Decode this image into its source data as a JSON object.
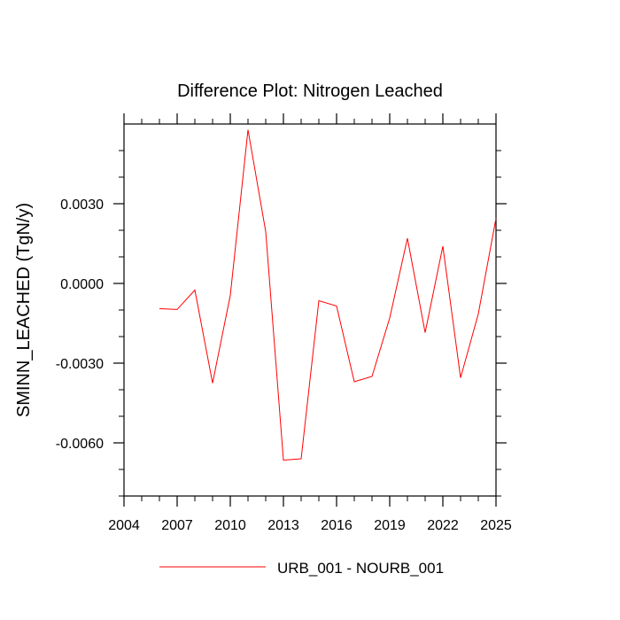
{
  "chart_data": {
    "type": "line",
    "title": "Difference Plot: Nitrogen Leached",
    "xlabel": "",
    "ylabel": "SMINN_LEACHED  (TgN/y)",
    "xlim": [
      2004,
      2025
    ],
    "ylim": [
      -0.008,
      0.006
    ],
    "x_ticks": [
      2004,
      2007,
      2010,
      2013,
      2016,
      2019,
      2022,
      2025
    ],
    "x_tick_labels": [
      "2004",
      "2007",
      "2010",
      "2013",
      "2016",
      "2019",
      "2022",
      "2025"
    ],
    "y_ticks": [
      0.003,
      0.0,
      -0.003,
      -0.006
    ],
    "y_tick_labels": [
      "0.0030",
      "0.0000",
      "-0.0030",
      "-0.0060"
    ],
    "grid": false,
    "legend_position": "bottom",
    "series": [
      {
        "name": "URB_001 - NOURB_001",
        "color": "#ff0000",
        "x": [
          2006,
          2007,
          2008,
          2009,
          2010,
          2011,
          2012,
          2013,
          2014,
          2015,
          2016,
          2017,
          2018,
          2019,
          2020,
          2021,
          2022,
          2023,
          2024,
          2025
        ],
        "y": [
          -0.00095,
          -0.00098,
          -0.00025,
          -0.00375,
          -0.00045,
          0.00578,
          0.00195,
          -0.00665,
          -0.0066,
          -0.00065,
          -0.00085,
          -0.0037,
          -0.0035,
          -0.0013,
          0.0017,
          -0.00185,
          0.0014,
          -0.00355,
          -0.00115,
          0.00245
        ]
      }
    ]
  }
}
